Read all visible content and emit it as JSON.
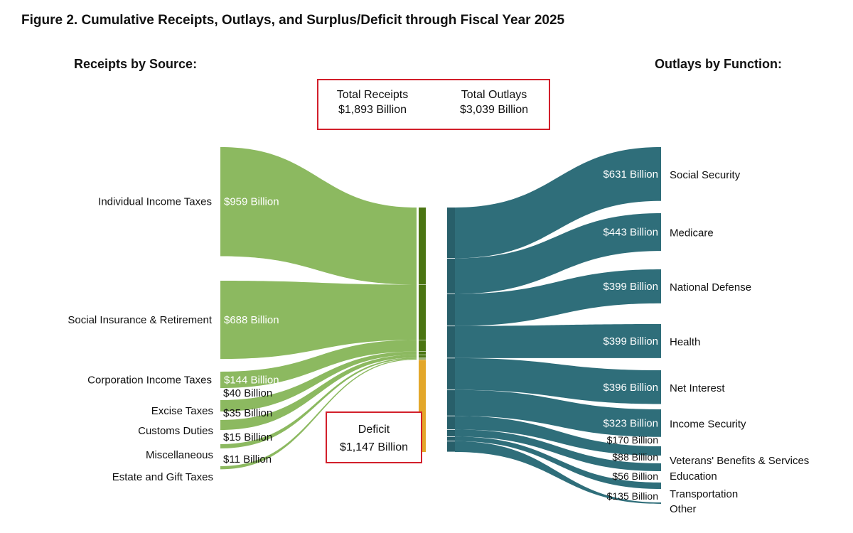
{
  "title": "Figure 2. Cumulative Receipts, Outlays, and Surplus/Deficit through Fiscal Year 2025",
  "receipts_heading": "Receipts by Source:",
  "outlays_heading": "Outlays by Function:",
  "totals": {
    "receipts_label": "Total Receipts",
    "receipts_value": "$1,893 Billion",
    "outlays_label": "Total Outlays",
    "outlays_value": "$3,039 Billion"
  },
  "deficit": {
    "label": "Deficit",
    "value": "$1,147 Billion"
  },
  "colors": {
    "receipts": "#8cb960",
    "receipts_bar": "#4b7512",
    "deficit_bar": "#e3a72a",
    "outlays": "#2f6e7a",
    "box": "#d21f2b"
  },
  "chart_data": {
    "type": "sankey",
    "units": "Billion dollars",
    "receipts": [
      {
        "name": "Individual Income Taxes",
        "value": 959,
        "label": "$959 Billion"
      },
      {
        "name": "Social Insurance & Retirement",
        "value": 688,
        "label": "$688 Billion"
      },
      {
        "name": "Corporation Income Taxes",
        "value": 144,
        "label": "$144 Billion"
      },
      {
        "name": "Excise Taxes",
        "value": 40,
        "label": "$40 Billion"
      },
      {
        "name": "Customs Duties",
        "value": 35,
        "label": "$35 Billion"
      },
      {
        "name": "Miscellaneous",
        "value": 15,
        "label": "$15 Billion"
      },
      {
        "name": "Estate and Gift Taxes",
        "value": 11,
        "label": "$11 Billion"
      }
    ],
    "deficit": 1147,
    "outlays": [
      {
        "name": "Social Security",
        "value": 631,
        "label": "$631 Billion"
      },
      {
        "name": "Medicare",
        "value": 443,
        "label": "$443 Billion"
      },
      {
        "name": "National Defense",
        "value": 399,
        "label": "$399 Billion"
      },
      {
        "name": "Health",
        "value": 399,
        "label": "$399 Billion"
      },
      {
        "name": "Net Interest",
        "value": 396,
        "label": "$396 Billion"
      },
      {
        "name": "Income Security",
        "value": 323,
        "label": "$323 Billion"
      },
      {
        "name": "Veterans' Benefits & Services",
        "value": 170,
        "label": "$170 Billion"
      },
      {
        "name": "Education",
        "value": 88,
        "label": "$88 Billion"
      },
      {
        "name": "Transportation",
        "value": 56,
        "label": "$56 Billion"
      },
      {
        "name": "Other",
        "value": 135,
        "label": "$135 Billion"
      }
    ]
  }
}
